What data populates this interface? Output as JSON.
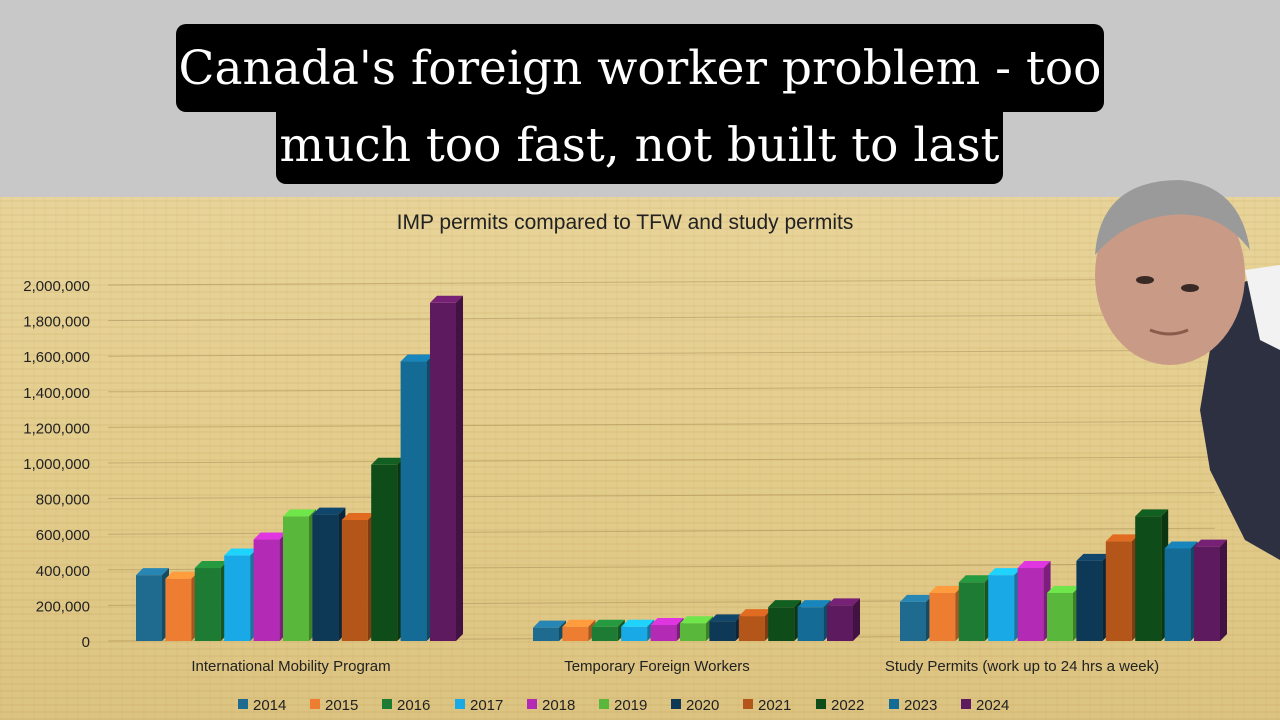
{
  "headline": {
    "line1": "Canada's foreign worker problem - too",
    "line2": "much too fast, not built to last"
  },
  "colors": {
    "2014": "#1f6b8f",
    "2015": "#ed7d31",
    "2016": "#1e7b34",
    "2017": "#19a9e6",
    "2018": "#b32bb5",
    "2019": "#59b83b",
    "2020": "#0d3856",
    "2021": "#b4561a",
    "2022": "#0e4d1a",
    "2023": "#136b96",
    "2024": "#5e1a5e"
  },
  "chart_data": {
    "type": "bar",
    "title": "IMP permits compared to TFW and study permits",
    "xlabel": "",
    "ylabel": "",
    "ylim": [
      0,
      2000000
    ],
    "yticks": [
      "0",
      "200,000",
      "400,000",
      "600,000",
      "800,000",
      "1,000,000",
      "1,200,000",
      "1,400,000",
      "1,600,000",
      "1,800,000",
      "2,000,000"
    ],
    "grid": true,
    "legend": "bottom",
    "categories": [
      "International Mobility Program",
      "Temporary Foreign Workers",
      "Study Permits (work up to 24 hrs a week)"
    ],
    "series": [
      {
        "name": "2014",
        "values": [
          370000,
          75000,
          220000
        ]
      },
      {
        "name": "2015",
        "values": [
          350000,
          80000,
          270000
        ]
      },
      {
        "name": "2016",
        "values": [
          410000,
          80000,
          330000
        ]
      },
      {
        "name": "2017",
        "values": [
          480000,
          80000,
          370000
        ]
      },
      {
        "name": "2018",
        "values": [
          570000,
          90000,
          410000
        ]
      },
      {
        "name": "2019",
        "values": [
          700000,
          100000,
          270000
        ]
      },
      {
        "name": "2020",
        "values": [
          710000,
          110000,
          450000
        ]
      },
      {
        "name": "2021",
        "values": [
          680000,
          140000,
          560000
        ]
      },
      {
        "name": "2022",
        "values": [
          990000,
          190000,
          700000
        ]
      },
      {
        "name": "2023",
        "values": [
          1570000,
          190000,
          520000
        ]
      },
      {
        "name": "2024",
        "values": [
          1900000,
          200000,
          530000
        ]
      }
    ]
  }
}
